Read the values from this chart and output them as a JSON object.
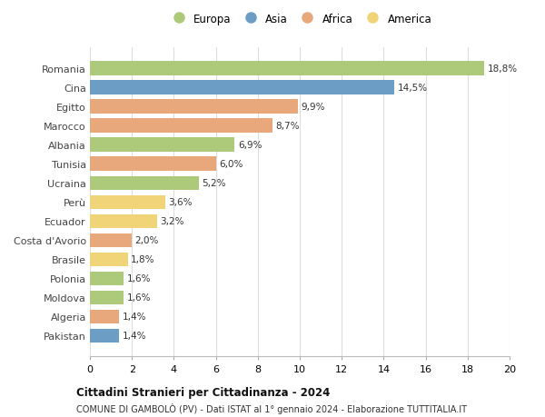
{
  "countries": [
    "Romania",
    "Cina",
    "Egitto",
    "Marocco",
    "Albania",
    "Tunisia",
    "Ucraina",
    "Perù",
    "Ecuador",
    "Costa d'Avorio",
    "Brasile",
    "Polonia",
    "Moldova",
    "Algeria",
    "Pakistan"
  ],
  "values": [
    18.8,
    14.5,
    9.9,
    8.7,
    6.9,
    6.0,
    5.2,
    3.6,
    3.2,
    2.0,
    1.8,
    1.6,
    1.6,
    1.4,
    1.4
  ],
  "labels": [
    "18,8%",
    "14,5%",
    "9,9%",
    "8,7%",
    "6,9%",
    "6,0%",
    "5,2%",
    "3,6%",
    "3,2%",
    "2,0%",
    "1,8%",
    "1,6%",
    "1,6%",
    "1,4%",
    "1,4%"
  ],
  "continents": [
    "Europa",
    "Asia",
    "Africa",
    "Africa",
    "Europa",
    "Africa",
    "Europa",
    "America",
    "America",
    "Africa",
    "America",
    "Europa",
    "Europa",
    "Africa",
    "Asia"
  ],
  "colors": {
    "Europa": "#adc97a",
    "Asia": "#6b9dc5",
    "Africa": "#e8a87c",
    "America": "#f2d478"
  },
  "title1": "Cittadini Stranieri per Cittadinanza - 2024",
  "title2": "COMUNE DI GAMBOLÒ (PV) - Dati ISTAT al 1° gennaio 2024 - Elaborazione TUTTITALIA.IT",
  "xlim": [
    0,
    20
  ],
  "xticks": [
    0,
    2,
    4,
    6,
    8,
    10,
    12,
    14,
    16,
    18,
    20
  ],
  "background_color": "#ffffff",
  "grid_color": "#dddddd",
  "bar_height": 0.72
}
